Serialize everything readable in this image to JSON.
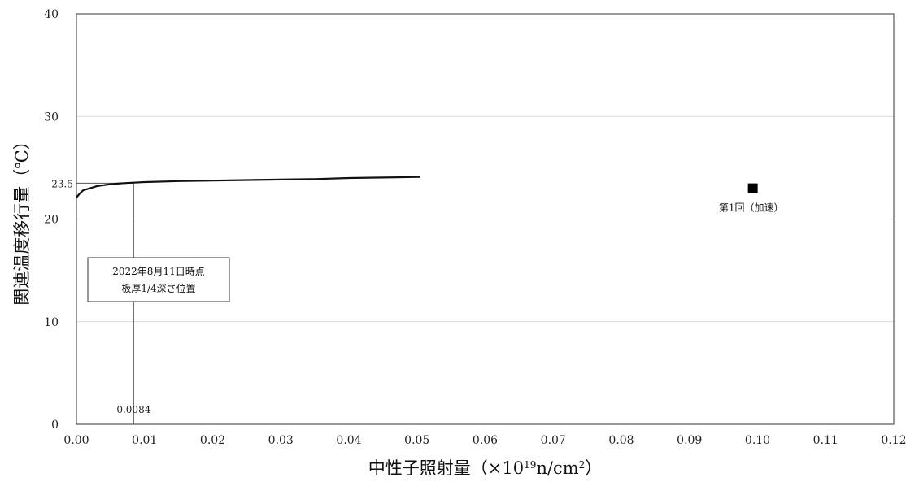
{
  "chart_data": {
    "type": "line",
    "title": "",
    "xlabel_main": "中性子照射量（×10",
    "xlabel_exp": "19",
    "xlabel_mid": "n/cm",
    "xlabel_exp2": "2",
    "xlabel_end": "）",
    "ylabel": "関連温度移行量（℃）",
    "xlim": [
      0,
      0.12
    ],
    "ylim": [
      0,
      40
    ],
    "xticks": [
      "0.00",
      "0.01",
      "0.02",
      "0.03",
      "0.04",
      "0.05",
      "0.06",
      "0.07",
      "0.08",
      "0.09",
      "0.10",
      "0.11",
      "0.12"
    ],
    "yticks": [
      "0",
      "10",
      "20",
      "30",
      "40"
    ],
    "grid": "horizontal",
    "series": [
      {
        "kind": "line",
        "x": [
          0.0,
          0.0005,
          0.001,
          0.002,
          0.003,
          0.004,
          0.005,
          0.006,
          0.007,
          0.0084,
          0.01,
          0.015,
          0.02,
          0.025,
          0.03,
          0.035,
          0.04,
          0.045,
          0.0505
        ],
        "y": [
          22.1,
          22.5,
          22.8,
          23.0,
          23.2,
          23.3,
          23.4,
          23.45,
          23.5,
          23.55,
          23.6,
          23.7,
          23.75,
          23.8,
          23.85,
          23.9,
          24.0,
          24.05,
          24.1
        ]
      },
      {
        "kind": "point",
        "name": "第1回（加速）",
        "x": [
          0.0993
        ],
        "y": [
          23.0
        ]
      }
    ],
    "reference": {
      "x_value": 0.0084,
      "x_label": "0.0084",
      "y_value": 23.5,
      "y_label": "23.5"
    },
    "annotation": {
      "line1": "2022年8月11日時点",
      "line2": "板厚1/4深さ位置"
    },
    "point_label": "第1回（加速）"
  }
}
